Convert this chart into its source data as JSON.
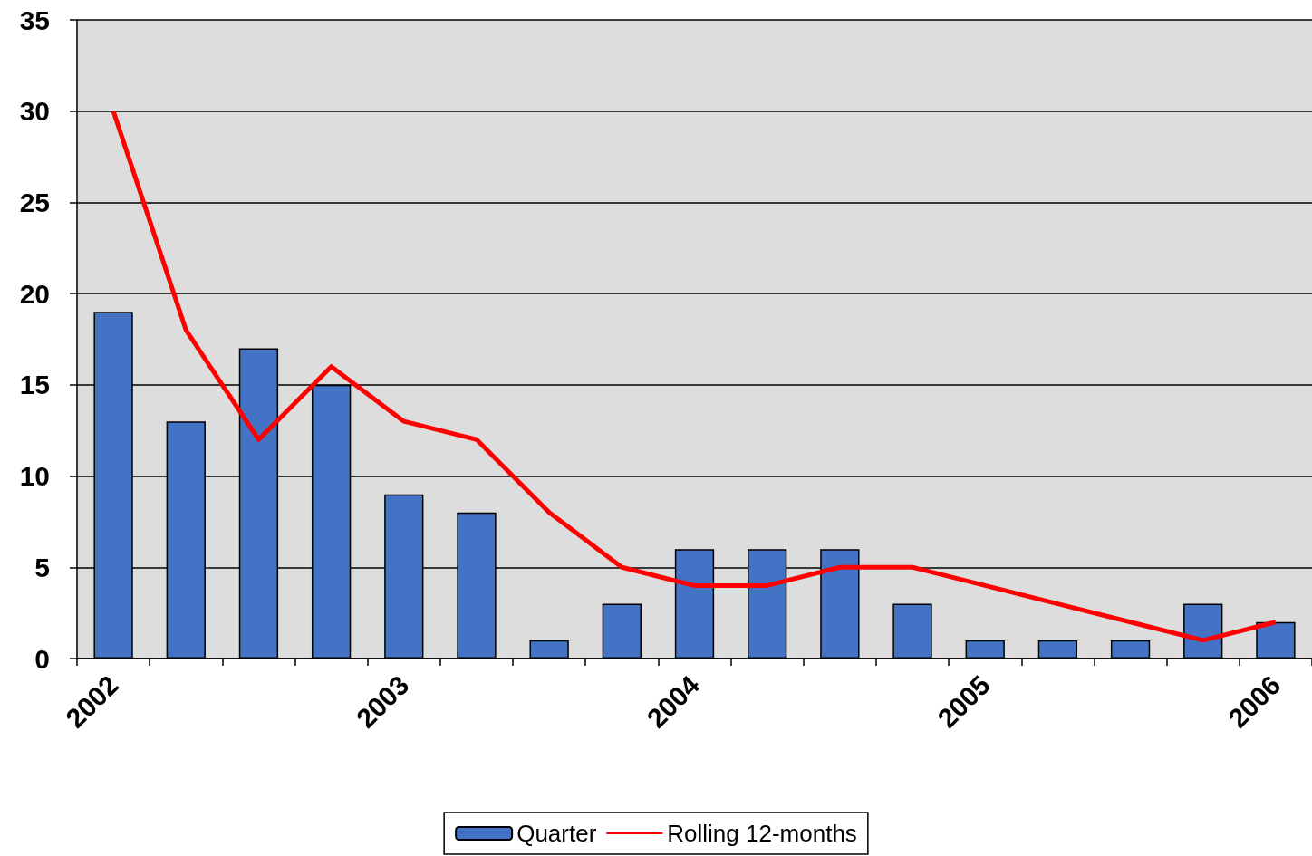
{
  "chart_data": {
    "type": "bar",
    "categories": [
      "2002",
      null,
      null,
      null,
      "2003",
      null,
      null,
      null,
      "2004",
      null,
      null,
      null,
      "2005",
      null,
      null,
      null,
      "2006"
    ],
    "series": [
      {
        "name": "Quarter",
        "color": "#4472c4",
        "values": [
          19,
          13,
          17,
          15,
          9,
          8,
          1,
          3,
          6,
          6,
          6,
          3,
          1,
          1,
          1,
          3,
          2
        ]
      },
      {
        "name": "Rolling 12-months",
        "type": "line",
        "color": "#ff0000",
        "values": [
          30,
          18,
          12,
          16,
          13,
          12,
          8,
          5,
          4,
          4,
          5,
          5,
          4,
          3,
          2,
          1,
          2
        ]
      }
    ],
    "ylim": [
      0,
      35
    ],
    "yticks": [
      0,
      5,
      10,
      15,
      20,
      25,
      30,
      35
    ],
    "grid": "y",
    "legend": "bottom",
    "marker": "none"
  }
}
